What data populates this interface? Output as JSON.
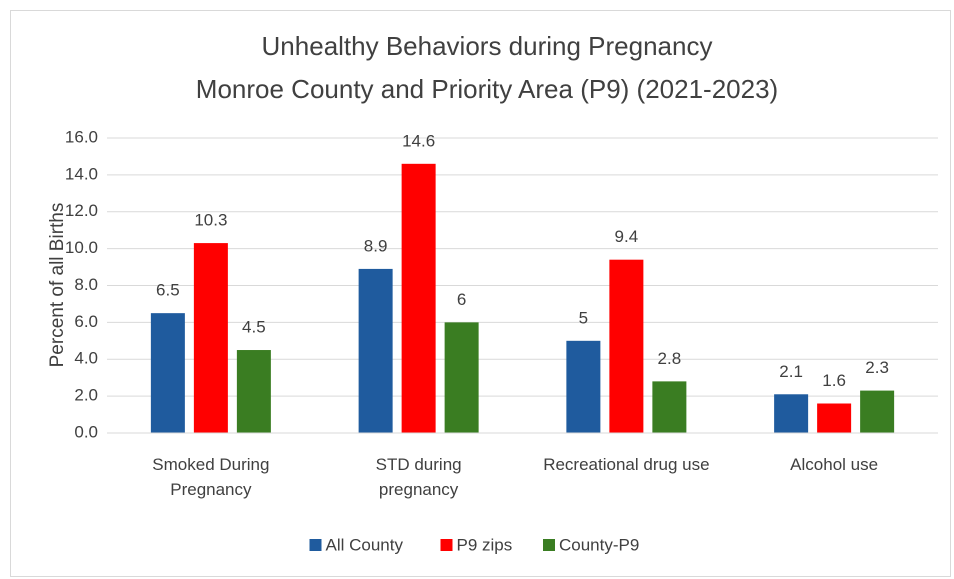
{
  "chart_data": {
    "type": "bar",
    "title": "Unhealthy Behaviors during Pregnancy",
    "subtitle": "Monroe County and Priority Area (P9) (2021-2023)",
    "ylabel": "Percent of all Births",
    "categories": [
      "Smoked During Pregnancy",
      "STD during pregnancy",
      "Recreational drug use",
      "Alcohol use"
    ],
    "series": [
      {
        "name": "All County",
        "color": "#1f5b9e",
        "values": [
          6.5,
          8.9,
          5,
          2.1
        ]
      },
      {
        "name": "P9 zips",
        "color": "#ff0000",
        "values": [
          10.3,
          14.6,
          9.4,
          1.6
        ]
      },
      {
        "name": "County-P9",
        "color": "#3a7d22",
        "values": [
          4.5,
          6,
          2.8,
          2.3
        ]
      }
    ],
    "ylim": [
      0,
      16
    ],
    "yticks": [
      {
        "value": 0,
        "label": "0.0"
      },
      {
        "value": 2,
        "label": "2.0"
      },
      {
        "value": 4,
        "label": "4.0"
      },
      {
        "value": 6,
        "label": "6.0"
      },
      {
        "value": 8,
        "label": "8.0"
      },
      {
        "value": 10,
        "label": "10.0"
      },
      {
        "value": 12,
        "label": "12.0"
      },
      {
        "value": 14,
        "label": "14.0"
      },
      {
        "value": 16,
        "label": "16.0"
      }
    ],
    "grid": true,
    "legend": "bottom"
  }
}
